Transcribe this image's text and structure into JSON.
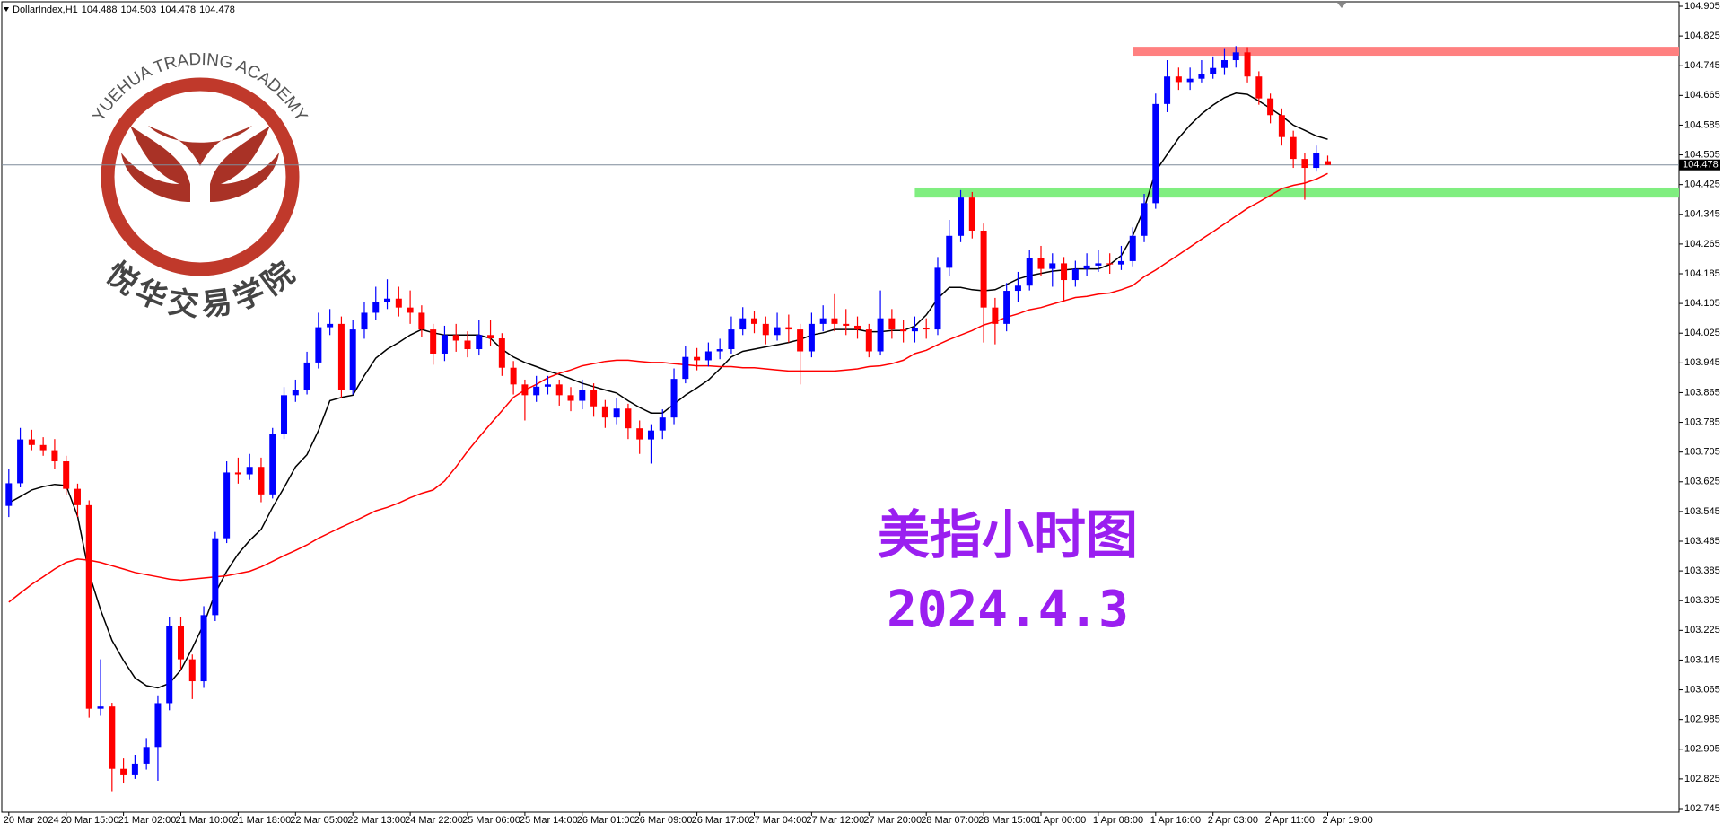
{
  "chart_data": {
    "type": "candlestick",
    "header": "DollarIndex,H1",
    "watermark": {
      "arc_text": "YUEHUA TRADING ACADEMY",
      "name": "悦华交易学院"
    },
    "annotations": [
      "美指小时图",
      "2024.4.3"
    ],
    "annotation_color": "#9a1ff0",
    "bull_color": "#0000ff",
    "bear_color": "#ff0000",
    "x": [
      "20 Mar 2024",
      null,
      null,
      null,
      null,
      "20 Mar 15:00",
      null,
      null,
      null,
      null,
      "21 Mar 02:00",
      null,
      null,
      null,
      null,
      "21 Mar 10:00",
      null,
      null,
      null,
      null,
      "21 Mar 18:00",
      null,
      null,
      null,
      null,
      "22 Mar 05:00",
      null,
      null,
      null,
      null,
      "22 Mar 13:00",
      null,
      null,
      null,
      null,
      "24 Mar 22:00",
      null,
      null,
      null,
      null,
      "25 Mar 06:00",
      null,
      null,
      null,
      null,
      "25 Mar 14:00",
      null,
      null,
      null,
      null,
      "26 Mar 01:00",
      null,
      null,
      null,
      null,
      "26 Mar 09:00",
      null,
      null,
      null,
      null,
      "26 Mar 17:00",
      null,
      null,
      null,
      null,
      "27 Mar 04:00",
      null,
      null,
      null,
      null,
      "27 Mar 12:00",
      null,
      null,
      null,
      null,
      "27 Mar 20:00",
      null,
      null,
      null,
      null,
      "28 Mar 07:00",
      null,
      null,
      null,
      null,
      "28 Mar 15:00",
      null,
      null,
      null,
      null,
      "1 Apr 00:00",
      null,
      null,
      null,
      null,
      "1 Apr 08:00",
      null,
      null,
      null,
      null,
      "1 Apr 16:00",
      null,
      null,
      null,
      null,
      "2 Apr 03:00",
      null,
      null,
      null,
      null,
      "2 Apr 11:00",
      null,
      null,
      null,
      null,
      "2 Apr 19:00"
    ],
    "open": [
      103.56,
      103.621,
      103.739,
      103.724,
      103.71,
      103.68,
      103.606,
      103.562,
      103.014,
      103.02,
      102.852,
      102.837,
      102.866,
      102.911,
      103.029,
      103.236,
      103.147,
      103.088,
      103.266,
      103.473,
      103.65,
      103.645,
      103.665,
      103.591,
      103.754,
      103.858,
      103.872,
      103.946,
      104.041,
      104.05,
      103.872,
      104.035,
      104.08,
      104.109,
      104.118,
      104.094,
      104.08,
      104.035,
      103.97,
      104.02,
      104.005,
      103.982,
      104.02,
      104.011,
      103.932,
      103.887,
      103.858,
      103.881,
      103.887,
      103.858,
      103.843,
      103.872,
      103.828,
      103.798,
      103.822,
      103.769,
      103.739,
      103.763,
      103.798,
      103.902,
      103.961,
      103.952,
      103.976,
      103.982,
      104.035,
      104.065,
      104.05,
      104.02,
      104.041,
      104.035,
      103.976,
      104.05,
      104.065,
      104.05,
      104.045,
      104.035,
      103.976,
      104.065,
      104.035,
      104.03,
      104.04,
      104.035,
      104.201,
      104.287,
      104.39,
      104.301,
      104.094,
      104.05,
      104.139,
      104.153,
      104.227,
      104.198,
      104.213,
      104.168,
      104.198,
      104.207,
      104.213,
      104.21,
      104.219,
      104.287,
      104.375,
      104.642,
      104.716,
      104.701,
      104.71,
      104.722,
      104.739,
      104.76,
      104.781,
      104.716,
      104.657,
      104.612,
      104.553,
      104.494,
      104.47,
      104.488
    ],
    "high": [
      103.66,
      103.77,
      103.765,
      103.745,
      103.74,
      103.695,
      103.62,
      103.575,
      103.147,
      103.03,
      102.88,
      102.89,
      102.935,
      103.05,
      103.26,
      103.26,
      103.16,
      103.29,
      103.49,
      103.68,
      103.69,
      103.7,
      103.69,
      103.77,
      103.88,
      103.9,
      103.975,
      104.08,
      104.09,
      104.07,
      104.06,
      104.11,
      104.15,
      104.17,
      104.15,
      104.14,
      104.1,
      104.05,
      104.045,
      104.05,
      104.03,
      104.06,
      104.06,
      104.025,
      103.95,
      103.9,
      103.91,
      103.91,
      103.9,
      103.88,
      103.9,
      103.89,
      103.845,
      103.85,
      103.835,
      103.79,
      103.78,
      103.82,
      103.93,
      103.99,
      103.985,
      104.0,
      104.01,
      104.07,
      104.095,
      104.085,
      104.07,
      104.08,
      104.075,
      104.05,
      104.08,
      104.1,
      104.13,
      104.09,
      104.07,
      104.05,
      104.14,
      104.09,
      104.06,
      104.07,
      104.065,
      104.23,
      104.33,
      104.41,
      104.405,
      104.32,
      104.12,
      104.16,
      104.19,
      104.25,
      104.26,
      104.24,
      104.23,
      104.22,
      104.24,
      104.25,
      104.24,
      104.26,
      104.31,
      104.4,
      104.67,
      104.76,
      104.74,
      104.74,
      104.76,
      104.77,
      104.79,
      104.798,
      104.795,
      104.73,
      104.67,
      104.63,
      104.57,
      104.51,
      104.53,
      104.503
    ],
    "low": [
      103.53,
      103.61,
      103.71,
      103.695,
      103.66,
      103.59,
      103.53,
      102.99,
      102.995,
      102.792,
      102.815,
      102.825,
      102.85,
      102.82,
      103.01,
      103.12,
      103.04,
      103.07,
      103.25,
      103.46,
      103.62,
      103.63,
      103.57,
      103.58,
      103.74,
      103.84,
      103.86,
      103.93,
      104.02,
      103.85,
      103.86,
      104.01,
      104.06,
      104.09,
      104.07,
      104.05,
      104.015,
      103.94,
      103.95,
      103.975,
      103.96,
      103.965,
      103.99,
      103.91,
      103.86,
      103.79,
      103.84,
      103.86,
      103.83,
      103.815,
      103.82,
      103.8,
      103.77,
      103.78,
      103.74,
      103.7,
      103.674,
      103.74,
      103.78,
      103.89,
      103.925,
      103.935,
      103.955,
      103.97,
      104.02,
      104.025,
      103.995,
      104.005,
      104.0,
      103.887,
      103.96,
      104.03,
      104.03,
      104.02,
      104.01,
      103.96,
      103.965,
      104.01,
      104.0,
      104.0,
      104.01,
      104.02,
      104.18,
      104.27,
      104.28,
      104.0,
      103.995,
      104.03,
      104.11,
      104.14,
      104.18,
      104.15,
      104.11,
      104.15,
      104.18,
      104.19,
      104.185,
      104.195,
      104.205,
      104.27,
      104.36,
      104.62,
      104.68,
      104.68,
      104.7,
      104.71,
      104.72,
      104.74,
      104.7,
      104.64,
      104.59,
      104.53,
      104.47,
      104.384,
      104.46,
      104.478
    ],
    "close": [
      103.621,
      103.739,
      103.724,
      103.71,
      103.68,
      103.606,
      103.562,
      103.014,
      103.02,
      102.852,
      102.837,
      102.866,
      102.911,
      103.029,
      103.236,
      103.147,
      103.088,
      103.266,
      103.473,
      103.65,
      103.645,
      103.665,
      103.591,
      103.754,
      103.858,
      103.872,
      103.946,
      104.041,
      104.05,
      103.872,
      104.035,
      104.08,
      104.109,
      104.118,
      104.094,
      104.08,
      104.035,
      103.97,
      104.02,
      104.005,
      103.982,
      104.02,
      104.011,
      103.932,
      103.887,
      103.858,
      103.881,
      103.887,
      103.858,
      103.843,
      103.872,
      103.828,
      103.798,
      103.822,
      103.769,
      103.739,
      103.763,
      103.798,
      103.902,
      103.961,
      103.952,
      103.976,
      103.982,
      104.035,
      104.065,
      104.05,
      104.02,
      104.041,
      104.035,
      103.976,
      104.05,
      104.065,
      104.05,
      104.045,
      104.035,
      103.976,
      104.065,
      104.035,
      104.03,
      104.04,
      104.035,
      104.201,
      104.287,
      104.39,
      104.301,
      104.094,
      104.05,
      104.139,
      104.153,
      104.227,
      104.198,
      104.213,
      104.168,
      104.198,
      104.207,
      104.213,
      104.21,
      104.219,
      104.287,
      104.375,
      104.642,
      104.716,
      104.701,
      104.71,
      104.722,
      104.739,
      104.76,
      104.781,
      104.716,
      104.657,
      104.612,
      104.553,
      104.494,
      104.47,
      104.509,
      104.478
    ],
    "series": [
      {
        "color": "#000000",
        "values": [
          103.568,
          103.585,
          103.603,
          103.612,
          103.618,
          103.615,
          103.532,
          103.378,
          103.281,
          103.198,
          103.144,
          103.097,
          103.076,
          103.07,
          103.082,
          103.118,
          103.177,
          103.242,
          103.325,
          103.384,
          103.431,
          103.467,
          103.497,
          103.556,
          103.609,
          103.665,
          103.698,
          103.763,
          103.843,
          103.852,
          103.858,
          103.911,
          103.958,
          103.982,
          104.0,
          104.02,
          104.035,
          104.026,
          104.02,
          104.02,
          104.02,
          104.02,
          104.011,
          103.982,
          103.961,
          103.946,
          103.935,
          103.923,
          103.914,
          103.902,
          103.89,
          103.881,
          103.872,
          103.864,
          103.843,
          103.825,
          103.81,
          103.81,
          103.834,
          103.858,
          103.878,
          103.899,
          103.929,
          103.961,
          103.976,
          103.982,
          103.988,
          103.994,
          104.0,
          104.008,
          104.02,
          104.026,
          104.035,
          104.035,
          104.035,
          104.029,
          104.029,
          104.032,
          104.032,
          104.044,
          104.074,
          104.118,
          104.148,
          104.148,
          104.142,
          104.139,
          104.142,
          104.156,
          104.171,
          104.18,
          104.186,
          104.192,
          104.195,
          104.198,
          104.198,
          104.198,
          104.21,
          104.234,
          104.287,
          104.361,
          104.461,
          104.506,
          104.55,
          104.585,
          104.615,
          104.639,
          104.659,
          104.671,
          104.668,
          104.65,
          104.63,
          104.609,
          104.585,
          104.571,
          104.556,
          104.547
        ]
      },
      {
        "color": "#ff0000",
        "values": [
          103.301,
          103.325,
          103.349,
          103.369,
          103.39,
          103.408,
          103.417,
          103.414,
          103.408,
          103.399,
          103.39,
          103.381,
          103.375,
          103.369,
          103.363,
          103.36,
          103.363,
          103.366,
          103.369,
          103.372,
          103.378,
          103.384,
          103.396,
          103.411,
          103.426,
          103.44,
          103.455,
          103.473,
          103.488,
          103.503,
          103.517,
          103.532,
          103.547,
          103.556,
          103.568,
          103.582,
          103.594,
          103.603,
          103.627,
          103.665,
          103.707,
          103.745,
          103.781,
          103.816,
          103.852,
          103.872,
          103.887,
          103.905,
          103.917,
          103.926,
          103.937,
          103.943,
          103.949,
          103.952,
          103.952,
          103.949,
          103.946,
          103.946,
          103.943,
          103.94,
          103.937,
          103.937,
          103.935,
          103.935,
          103.932,
          103.932,
          103.929,
          103.926,
          103.923,
          103.923,
          103.923,
          103.923,
          103.923,
          103.926,
          103.929,
          103.935,
          103.937,
          103.943,
          103.952,
          103.97,
          103.979,
          103.994,
          104.008,
          104.02,
          104.032,
          104.047,
          104.056,
          104.068,
          104.077,
          104.088,
          104.094,
          104.103,
          104.112,
          104.121,
          104.124,
          104.13,
          104.133,
          104.142,
          104.153,
          104.177,
          104.195,
          104.216,
          104.236,
          104.257,
          104.278,
          104.298,
          104.319,
          104.34,
          104.361,
          104.378,
          104.396,
          104.414,
          104.423,
          104.429,
          104.44,
          104.455
        ]
      }
    ],
    "zones": [
      {
        "range": [
          104.772,
          104.796
        ],
        "start": 98,
        "color": "#ff8080"
      },
      {
        "range": [
          104.39,
          104.417
        ],
        "start": 79,
        "color": "#80ee80"
      }
    ],
    "ylim": [
      102.745,
      104.905
    ],
    "yticks": [
      102.745,
      102.825,
      102.905,
      102.985,
      103.065,
      103.145,
      103.225,
      103.305,
      103.385,
      103.465,
      103.545,
      103.625,
      103.705,
      103.785,
      103.865,
      103.945,
      104.025,
      104.105,
      104.185,
      104.265,
      104.345,
      104.425,
      104.505,
      104.585,
      104.665,
      104.745,
      104.825,
      104.905
    ]
  }
}
